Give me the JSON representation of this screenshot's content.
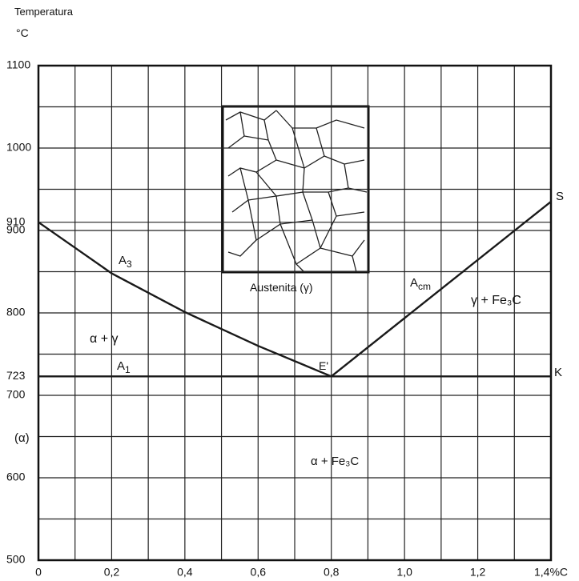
{
  "chart_data": {
    "type": "line",
    "xlim": [
      0,
      1.4
    ],
    "ylim": [
      500,
      1100
    ],
    "xticks": [
      0,
      {
        "value": 0.2,
        "label": "0,2"
      },
      {
        "value": 0.4,
        "label": "0,4"
      },
      {
        "value": 0.6,
        "label": "0,6"
      },
      {
        "value": 0.8,
        "label": "0,8"
      },
      {
        "value": 1.0,
        "label": "1,0"
      },
      {
        "value": 1.2,
        "label": "1,2"
      },
      {
        "value": 1.4,
        "label": "1,4%C"
      }
    ],
    "minor_xticks": [
      0.1,
      0.3,
      0.5,
      0.7,
      0.9,
      1.1,
      1.3
    ],
    "yticks": [
      500,
      600,
      700,
      723,
      800,
      900,
      910,
      1000,
      1100
    ],
    "minor_yticks": [
      550,
      650,
      750,
      850,
      950,
      1050
    ],
    "grid": true,
    "series": [
      {
        "color": "#1a1a1a",
        "x": [
          0,
          0.2,
          0.4,
          0.6,
          0.8
        ],
        "values": [
          910,
          848,
          801,
          760,
          723
        ]
      },
      {
        "color": "#1a1a1a",
        "x": [
          0.8,
          1.4
        ],
        "values": [
          723,
          935
        ]
      },
      {
        "color": "#1a1a1a",
        "x": [
          0,
          1.4
        ],
        "values": [
          723,
          723
        ]
      }
    ],
    "annotations": [
      {
        "text": "Temperatura"
      },
      {
        "text": "°C"
      },
      {
        "text": "A",
        "sub": "3"
      },
      {
        "text": "A",
        "sub": "1"
      },
      {
        "text": "A",
        "sub": "cm"
      },
      {
        "text": "E'"
      },
      {
        "text": "S"
      },
      {
        "text": "K"
      },
      {
        "text": "α + γ"
      },
      {
        "text": "γ + Fe₃C"
      },
      {
        "text": "α + Fe₃C"
      },
      {
        "text": "(α)"
      },
      {
        "text": "Austenita (γ)"
      }
    ]
  }
}
